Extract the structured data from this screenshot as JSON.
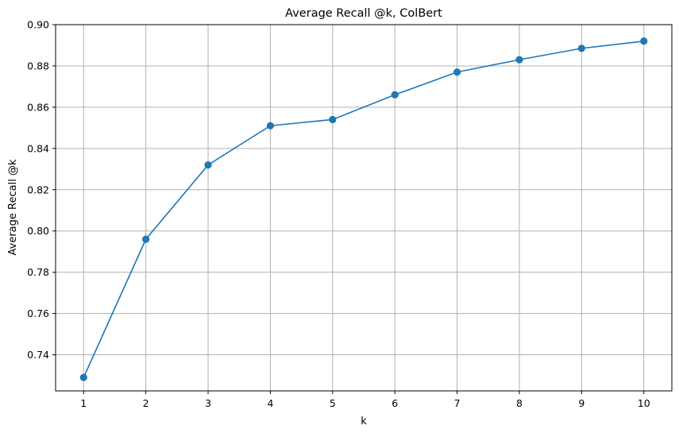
{
  "chart_data": {
    "type": "line",
    "title": "Average Recall @k, ColBert",
    "xlabel": "k",
    "ylabel": "Average Recall @k",
    "x": [
      1,
      2,
      3,
      4,
      5,
      6,
      7,
      8,
      9,
      10
    ],
    "xticks": [
      "1",
      "2",
      "3",
      "4",
      "5",
      "6",
      "7",
      "8",
      "9",
      "10"
    ],
    "yticks": [
      "0.74",
      "0.76",
      "0.78",
      "0.80",
      "0.82",
      "0.84",
      "0.86",
      "0.88",
      "0.90"
    ],
    "series": [
      {
        "values": [
          0.729,
          0.796,
          0.832,
          0.851,
          0.854,
          0.866,
          0.877,
          0.883,
          0.8885,
          0.892
        ],
        "color": "#1f77b4",
        "marker": "circle"
      }
    ],
    "xlim": [
      0.55,
      10.45
    ],
    "ylim": [
      0.7225,
      0.9
    ],
    "grid": true,
    "grid_color": "#b0b0b0",
    "legend": "none"
  }
}
